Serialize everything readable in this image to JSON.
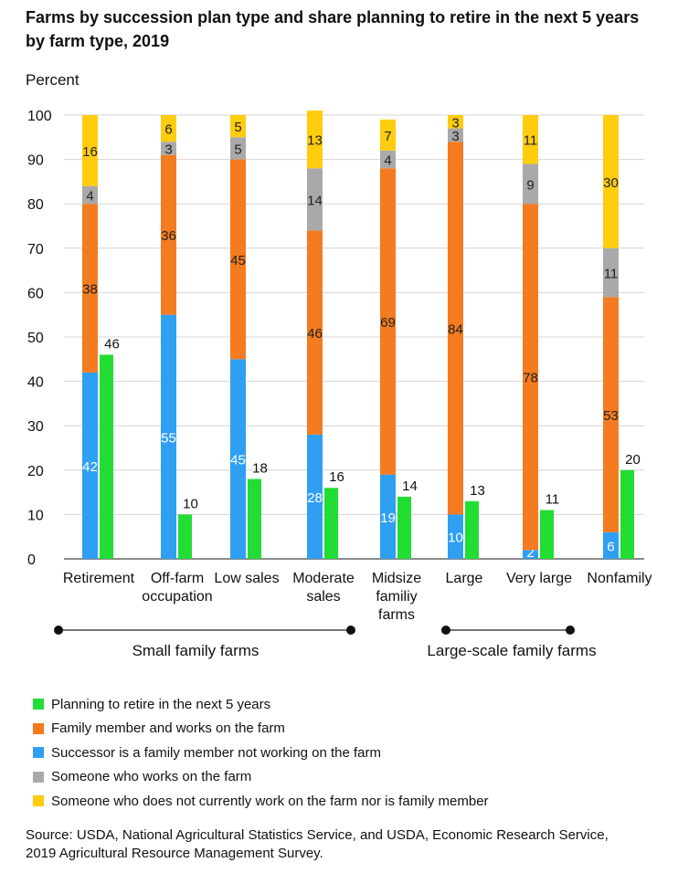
{
  "title": "Farms by succession plan type and share planning to retire in the next 5 years by farm type, 2019",
  "y_unit_label": "Percent",
  "groups": [
    {
      "label": "Small family farms"
    },
    {
      "label": "Large-scale family farms"
    }
  ],
  "legend": [
    {
      "label": "Planning to retire in the next 5 years",
      "color": "#22dd33"
    },
    {
      "label": "Family member and works on the farm",
      "color": "#f47b20"
    },
    {
      "label": "Successor is a family member not working on the farm",
      "color": "#2f9ff2"
    },
    {
      "label": "Someone who works on the farm",
      "color": "#a9a9a9"
    },
    {
      "label": "Someone who does not currently work on the farm nor is family member",
      "color": "#ffcc0e"
    }
  ],
  "source": "Source: USDA, National Agricultural Statistics Service, and USDA, Economic Research Service, 2019 Agricultural Resource Management Survey.",
  "chart_data": {
    "type": "bar",
    "categories": [
      "Retirement",
      "Off-farm occupation",
      "Low sales",
      "Moderate sales",
      "Midsize familiy farms",
      "Large",
      "Very large",
      "Nonfamily"
    ],
    "stack_series": [
      {
        "name": "Successor is a family member not working on the farm",
        "color": "#2f9ff2",
        "values": [
          42,
          55,
          45,
          28,
          19,
          10,
          2,
          6
        ]
      },
      {
        "name": "Family member and works on the farm",
        "color": "#f47b20",
        "values": [
          38,
          36,
          45,
          46,
          69,
          84,
          78,
          53
        ]
      },
      {
        "name": "Someone who works on the farm",
        "color": "#a9a9a9",
        "values": [
          4,
          3,
          5,
          14,
          4,
          3,
          9,
          11
        ]
      },
      {
        "name": "Someone who does not currently work on the farm nor is family member",
        "color": "#ffcc0e",
        "values": [
          16,
          6,
          5,
          13,
          7,
          3,
          11,
          30
        ]
      }
    ],
    "side_series": {
      "name": "Planning to retire in the next 5 years",
      "color": "#22dd33",
      "values": [
        46,
        10,
        18,
        16,
        14,
        13,
        11,
        20
      ]
    },
    "ylabel": "Percent",
    "ylim": [
      0,
      100
    ],
    "yticks": [
      0,
      10,
      20,
      30,
      40,
      50,
      60,
      70,
      80,
      90,
      100
    ],
    "grid": true
  }
}
